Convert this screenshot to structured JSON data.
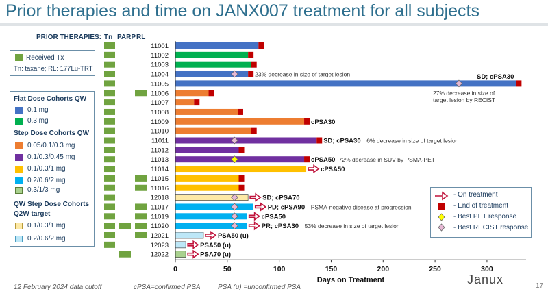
{
  "title": "Prior therapies and time on JANX007 treatment for all subjects",
  "prior_header": "PRIOR THERAPIES:",
  "col_tn": "Tn",
  "col_parp": "PARP",
  "col_rl": "RL",
  "left_legend": {
    "received_tx": "Received Tx",
    "abbrev": "Tn: taxane; RL: 177Lu-TRT",
    "flat_head": "Flat Dose Cohorts QW",
    "flat": [
      {
        "label": "0.1 mg",
        "color": "#4472c4"
      },
      {
        "label": "0.3 mg",
        "color": "#00b050"
      }
    ],
    "step_head": "Step Dose Cohorts QW",
    "step": [
      {
        "label": "0.05/0.1/0.3 mg",
        "color": "#ed7d31"
      },
      {
        "label": "0.1/0.3/0.45 mg",
        "color": "#7030a0"
      },
      {
        "label": "0.1/0.3/1 mg",
        "color": "#ffc000"
      },
      {
        "label": "0.2/0.6/2 mg",
        "color": "#00b0f0"
      },
      {
        "label": "0.3/1/3 mg",
        "color": "#a9d18e"
      }
    ],
    "q2w_head_1": "QW Step Dose Cohorts",
    "q2w_head_2": "Q2W target",
    "q2w": [
      {
        "label": "0.1/0.3/1 mg",
        "color": "#fde9a6"
      },
      {
        "label": "0.2/0.6/2 mg",
        "color": "#bde7f7"
      }
    ]
  },
  "right_legend": {
    "on_treatment": "- On treatment",
    "end_treatment": "- End of treatment",
    "best_pet": "- Best PET response",
    "best_recist": "- Best RECIST response"
  },
  "colors": {
    "received": "#70a340",
    "end_marker": "#c00000",
    "arrow": "#c0143c",
    "pet_diamond": "#ffff00",
    "recist_diamond": "#e6b8d4"
  },
  "chart_data": {
    "type": "bar",
    "orientation": "horizontal",
    "xlabel": "Days on Treatment",
    "xlim": [
      0,
      335
    ],
    "xticks": [
      0,
      50,
      100,
      150,
      200,
      250,
      300
    ],
    "subjects": [
      {
        "id": "11001",
        "days": 80,
        "color": "#4472c4",
        "status": "end",
        "tn": true,
        "parp": false,
        "rl": false,
        "pet": null,
        "recist": null,
        "label": "",
        "note": ""
      },
      {
        "id": "11002",
        "days": 70,
        "color": "#00b050",
        "status": "end",
        "tn": true,
        "parp": false,
        "rl": false,
        "pet": null,
        "recist": null,
        "label": "",
        "note": ""
      },
      {
        "id": "11003",
        "days": 73,
        "color": "#00b050",
        "status": "end",
        "tn": true,
        "parp": false,
        "rl": false,
        "pet": null,
        "recist": null,
        "label": "",
        "note": ""
      },
      {
        "id": "11004",
        "days": 70,
        "color": "#4472c4",
        "status": "end",
        "tn": true,
        "parp": false,
        "rl": false,
        "pet": null,
        "recist": 57,
        "label": "",
        "note": "23% decrease in size of target lesion"
      },
      {
        "id": "11005",
        "days": 328,
        "color": "#4472c4",
        "status": "end",
        "tn": true,
        "parp": false,
        "rl": false,
        "pet": null,
        "recist": 273,
        "label": "SD; cPSA30",
        "note": "27% decrease in size of target lesion by RECIST"
      },
      {
        "id": "11006",
        "days": 32,
        "color": "#ed7d31",
        "status": "end",
        "tn": true,
        "parp": false,
        "rl": true,
        "pet": null,
        "recist": null,
        "label": "",
        "note": ""
      },
      {
        "id": "11007",
        "days": 18,
        "color": "#ed7d31",
        "status": "end",
        "tn": true,
        "parp": false,
        "rl": false,
        "pet": null,
        "recist": null,
        "label": "",
        "note": ""
      },
      {
        "id": "11008",
        "days": 60,
        "color": "#ed7d31",
        "status": "end",
        "tn": true,
        "parp": false,
        "rl": false,
        "pet": null,
        "recist": null,
        "label": "",
        "note": ""
      },
      {
        "id": "11009",
        "days": 124,
        "color": "#ed7d31",
        "status": "end",
        "tn": true,
        "parp": false,
        "rl": false,
        "pet": null,
        "recist": null,
        "label": "cPSA30",
        "note": ""
      },
      {
        "id": "11010",
        "days": 73,
        "color": "#ed7d31",
        "status": "end",
        "tn": true,
        "parp": false,
        "rl": false,
        "pet": null,
        "recist": null,
        "label": "",
        "note": ""
      },
      {
        "id": "11011",
        "days": 136,
        "color": "#7030a0",
        "status": "end",
        "tn": true,
        "parp": false,
        "rl": false,
        "pet": null,
        "recist": 57,
        "label": "SD; cPSA30",
        "note": "6% decrease in size of target lesion"
      },
      {
        "id": "11012",
        "days": 61,
        "color": "#7030a0",
        "status": "end",
        "tn": true,
        "parp": false,
        "rl": false,
        "pet": null,
        "recist": null,
        "label": "",
        "note": ""
      },
      {
        "id": "11013",
        "days": 124,
        "color": "#7030a0",
        "status": "end",
        "tn": true,
        "parp": false,
        "rl": false,
        "pet": 57,
        "recist": null,
        "label": "cPSA50",
        "note": "72% decrease in SUV by PSMA-PET"
      },
      {
        "id": "11014",
        "days": 126,
        "color": "#ffc000",
        "status": "on",
        "tn": true,
        "parp": false,
        "rl": false,
        "pet": null,
        "recist": null,
        "label": "cPSA50",
        "note": ""
      },
      {
        "id": "11015",
        "days": 61,
        "color": "#ffc000",
        "status": "end",
        "tn": true,
        "parp": false,
        "rl": true,
        "pet": null,
        "recist": null,
        "label": "",
        "note": ""
      },
      {
        "id": "11016",
        "days": 61,
        "color": "#ffc000",
        "status": "end",
        "tn": true,
        "parp": false,
        "rl": true,
        "pet": null,
        "recist": null,
        "label": "",
        "note": ""
      },
      {
        "id": "12018",
        "days": 70,
        "color": "#fde9a6",
        "status": "on",
        "tn": true,
        "parp": false,
        "rl": false,
        "pet": null,
        "recist": 57,
        "label": "SD; cPSA70",
        "note": ""
      },
      {
        "id": "11017",
        "days": 75,
        "color": "#00b0f0",
        "status": "on",
        "tn": true,
        "parp": false,
        "rl": true,
        "pet": null,
        "recist": 57,
        "label": "PD; cPSA90",
        "note": "PSMA-negative disease at progression"
      },
      {
        "id": "11019",
        "days": 69,
        "color": "#00b0f0",
        "status": "on",
        "tn": true,
        "parp": false,
        "rl": true,
        "pet": null,
        "recist": 57,
        "label": "cPSA50",
        "note": ""
      },
      {
        "id": "11020",
        "days": 69,
        "color": "#00b0f0",
        "status": "on",
        "tn": true,
        "parp": true,
        "rl": true,
        "pet": null,
        "recist": 57,
        "label": "PR; cPSA30",
        "note": "53% decrease in size of target lesion"
      },
      {
        "id": "12021",
        "days": 27,
        "color": "#bde7f7",
        "status": "on",
        "tn": true,
        "parp": false,
        "rl": true,
        "pet": null,
        "recist": null,
        "label": "PSA50 (u)",
        "note": ""
      },
      {
        "id": "12023",
        "days": 10,
        "color": "#bde7f7",
        "status": "on",
        "tn": true,
        "parp": false,
        "rl": false,
        "pet": null,
        "recist": null,
        "label": "PSA50 (u)",
        "note": ""
      },
      {
        "id": "12022",
        "days": 10,
        "color": "#a9d18e",
        "status": "on",
        "tn": false,
        "parp": true,
        "rl": false,
        "pet": null,
        "recist": null,
        "label": "PSA70 (u)",
        "note": ""
      }
    ]
  },
  "footer": {
    "date": "12 February 2024 data cutoff",
    "cpsa": "cPSA=confirmed PSA",
    "psau": "PSA (u) =unconfirmed PSA",
    "logo": "Janux",
    "page": "17"
  }
}
